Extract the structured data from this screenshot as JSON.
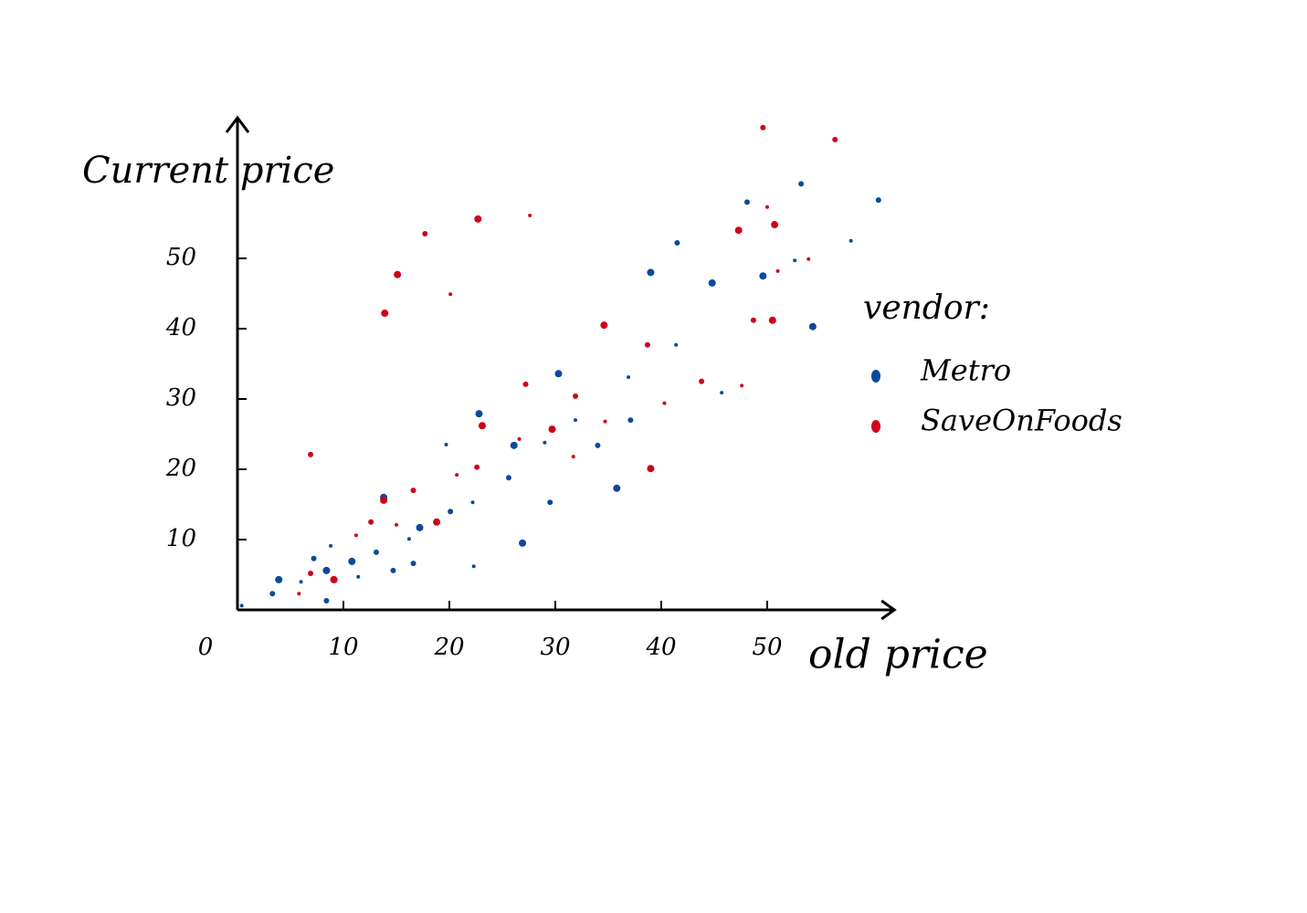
{
  "chart_data": {
    "type": "scatter",
    "x_label": "old price",
    "y_label": "Current price",
    "xlim": [
      0,
      62
    ],
    "ylim": [
      0,
      70
    ],
    "xticks": [
      0,
      10,
      20,
      30,
      40,
      50
    ],
    "yticks": [
      10,
      20,
      30,
      40,
      50
    ],
    "legend_title": "vendor:",
    "legend": "right",
    "series": [
      {
        "name": "Metro",
        "color": "#0b4a9a",
        "x": [
          0.4,
          3.3,
          3.9,
          6,
          7.2,
          8.4,
          8.8,
          8.4,
          10.8,
          11.4,
          13.1,
          13.8,
          16.2,
          16.6,
          17.2,
          19.7,
          20.1,
          22.8,
          22.2,
          25.6,
          26.1,
          29,
          29.5,
          30.3,
          31.9,
          34,
          35.8,
          36.9,
          37.1,
          39,
          41.4,
          41.5,
          44.8,
          45.7,
          48.1,
          49.6,
          52.6,
          53.2,
          54.3,
          57.9,
          60.5,
          26.9,
          22.3,
          14.7
        ],
        "values": [
          0.6,
          2.3,
          4.3,
          4,
          7.3,
          5.6,
          9.1,
          1.3,
          6.9,
          4.7,
          8.2,
          16,
          10.1,
          6.6,
          11.7,
          23.5,
          14,
          27.9,
          15.3,
          18.8,
          23.4,
          23.8,
          15.3,
          33.6,
          27,
          23.4,
          17.3,
          33.1,
          27,
          48,
          37.7,
          52.2,
          46.5,
          30.9,
          58,
          47.5,
          49.7,
          60.6,
          40.3,
          52.5,
          58.3,
          9.5,
          6.2,
          5.6
        ]
      },
      {
        "name": "SaveOnFoods",
        "color": "#d0021b",
        "x": [
          5.8,
          6.9,
          9.1,
          11.2,
          12.6,
          13.8,
          15,
          16.6,
          18.8,
          20.1,
          17.7,
          15.1,
          20.7,
          22.6,
          23.1,
          26.6,
          27.2,
          29.7,
          31.7,
          31.9,
          34.6,
          34.7,
          38.7,
          39,
          40.3,
          43.8,
          47.3,
          50,
          49.6,
          50.7,
          51,
          48.7,
          50.5,
          53.9,
          56.4,
          22.7,
          27.6,
          6.9,
          13.9,
          47.6
        ],
        "values": [
          2.3,
          5.2,
          4.3,
          10.6,
          12.5,
          15.6,
          12.1,
          17,
          12.5,
          44.9,
          53.5,
          47.7,
          19.2,
          20.3,
          26.2,
          24.3,
          32.1,
          25.7,
          21.8,
          30.4,
          40.5,
          26.8,
          37.7,
          20.1,
          29.4,
          32.5,
          54,
          57.3,
          68.6,
          54.8,
          48.2,
          41.2,
          41.2,
          49.9,
          66.9,
          55.6,
          56.1,
          22.1,
          42.2,
          31.9
        ]
      }
    ]
  }
}
